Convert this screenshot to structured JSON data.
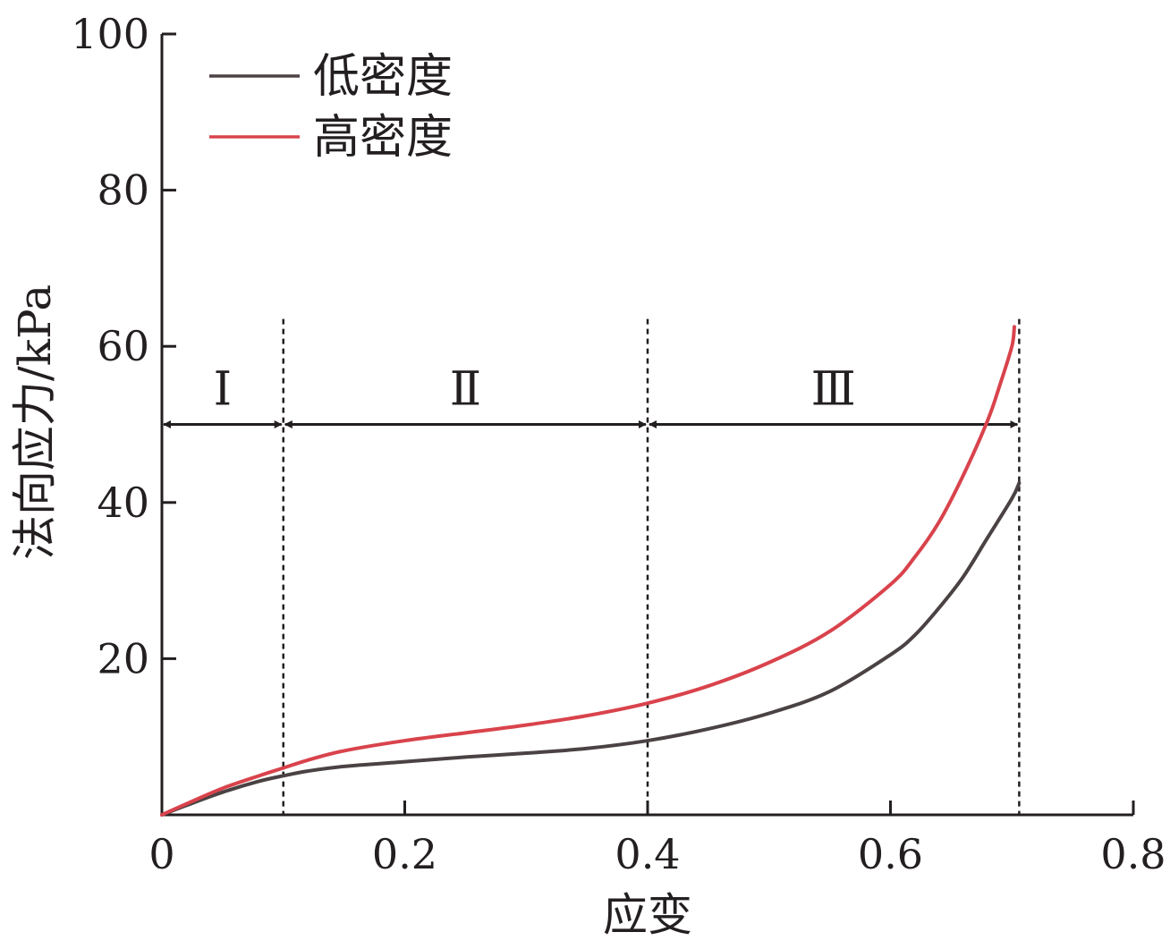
{
  "chart_data": {
    "type": "line",
    "title": "",
    "xlabel": "应变",
    "ylabel": "法向应力/kPa",
    "xlim": [
      0,
      0.8
    ],
    "ylim": [
      0,
      100
    ],
    "x_ticks": [
      "0",
      "0.2",
      "0.4",
      "0.6",
      "0.8"
    ],
    "y_ticks": [
      "20",
      "40",
      "60",
      "80",
      "100"
    ],
    "grid": false,
    "legend_position": "top-left",
    "series": [
      {
        "name": "低密度",
        "color": "#4a4243",
        "x": [
          0,
          0.02,
          0.05,
          0.08,
          0.1,
          0.12,
          0.15,
          0.2,
          0.25,
          0.3,
          0.35,
          0.4,
          0.45,
          0.5,
          0.55,
          0.6,
          0.62,
          0.64,
          0.66,
          0.68,
          0.7,
          0.706
        ],
        "y": [
          0,
          1.2,
          2.9,
          4.3,
          5.0,
          5.6,
          6.2,
          6.8,
          7.4,
          7.9,
          8.5,
          9.5,
          11.0,
          13.0,
          15.8,
          20.5,
          23.0,
          26.5,
          30.5,
          35.5,
          40.5,
          42.5
        ]
      },
      {
        "name": "高密度",
        "color": "#d9434c",
        "x": [
          0,
          0.02,
          0.05,
          0.08,
          0.1,
          0.12,
          0.15,
          0.2,
          0.25,
          0.3,
          0.35,
          0.4,
          0.45,
          0.5,
          0.55,
          0.6,
          0.62,
          0.64,
          0.66,
          0.68,
          0.69,
          0.7,
          0.702
        ],
        "y": [
          0,
          1.4,
          3.4,
          5.0,
          6.0,
          7.0,
          8.2,
          9.5,
          10.5,
          11.5,
          12.7,
          14.3,
          16.5,
          19.5,
          23.5,
          29.5,
          33.0,
          37.5,
          43.5,
          50.5,
          55.0,
          60.0,
          62.5
        ]
      }
    ],
    "region_dividers": [
      0.1,
      0.4,
      0.706
    ],
    "regions": [
      {
        "label": "Ⅰ",
        "from": 0,
        "to": 0.1
      },
      {
        "label": "Ⅱ",
        "from": 0.1,
        "to": 0.4
      },
      {
        "label": "Ⅲ",
        "from": 0.4,
        "to": 0.706
      }
    ],
    "region_arrow_y": 50,
    "origin_label": "0"
  }
}
